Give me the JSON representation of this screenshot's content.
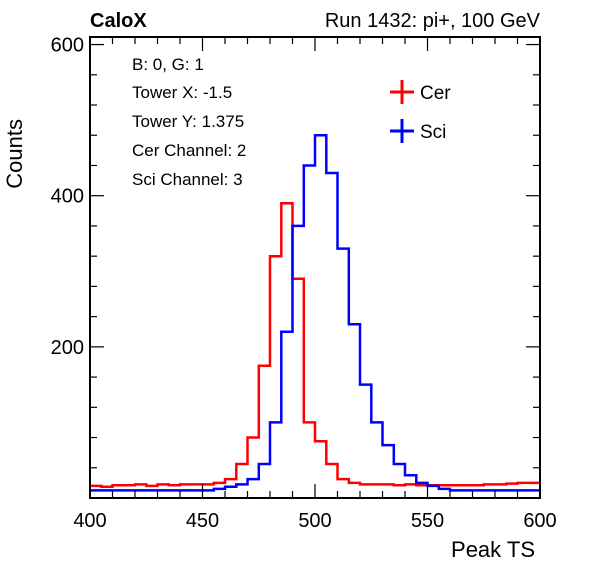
{
  "header": {
    "left_label": "CaloX",
    "right_label": "Run 1432: pi+, 100 GeV"
  },
  "info_box": {
    "lines": [
      "B: 0, G: 1",
      "Tower X: -1.5",
      "Tower Y: 1.375",
      "Cer Channel: 2",
      "Sci Channel: 3"
    ]
  },
  "colors": {
    "cer": "#ff0000",
    "sci": "#0000ff",
    "axis": "#000000"
  },
  "chart_data": {
    "type": "line",
    "style": "step-histogram",
    "xlabel": "Peak TS",
    "ylabel": "Counts",
    "xlim": [
      400,
      600
    ],
    "ylim": [
      0,
      610
    ],
    "x_ticks": [
      400,
      450,
      500,
      550,
      600
    ],
    "y_ticks": [
      200,
      400,
      600
    ],
    "legend_position": "top-right",
    "series": [
      {
        "name": "Cer",
        "color": "#ff0000",
        "bin_width": 5,
        "x": [
          400,
          405,
          410,
          415,
          420,
          425,
          430,
          435,
          440,
          445,
          450,
          455,
          460,
          465,
          470,
          475,
          480,
          485,
          490,
          495,
          500,
          505,
          510,
          515,
          520,
          525,
          530,
          535,
          540,
          545,
          550,
          555,
          560,
          565,
          570,
          575,
          580,
          585,
          590,
          595
        ],
        "values": [
          16,
          15,
          17,
          17,
          18,
          16,
          18,
          17,
          18,
          18,
          18,
          20,
          25,
          45,
          80,
          175,
          320,
          390,
          290,
          100,
          75,
          45,
          25,
          20,
          18,
          18,
          18,
          17,
          18,
          17,
          17,
          17,
          17,
          17,
          17,
          18,
          18,
          19,
          20,
          20
        ]
      },
      {
        "name": "Sci",
        "color": "#0000ff",
        "bin_width": 5,
        "x": [
          400,
          405,
          410,
          415,
          420,
          425,
          430,
          435,
          440,
          445,
          450,
          455,
          460,
          465,
          470,
          475,
          480,
          485,
          490,
          495,
          500,
          505,
          510,
          515,
          520,
          525,
          530,
          535,
          540,
          545,
          550,
          555,
          560,
          565,
          570,
          575,
          580,
          585,
          590,
          595
        ],
        "values": [
          10,
          10,
          10,
          10,
          10,
          10,
          10,
          10,
          10,
          10,
          10,
          12,
          15,
          18,
          25,
          45,
          100,
          220,
          360,
          440,
          480,
          430,
          330,
          230,
          150,
          100,
          70,
          45,
          30,
          20,
          16,
          12,
          10,
          10,
          10,
          10,
          10,
          10,
          10,
          10
        ]
      }
    ]
  }
}
